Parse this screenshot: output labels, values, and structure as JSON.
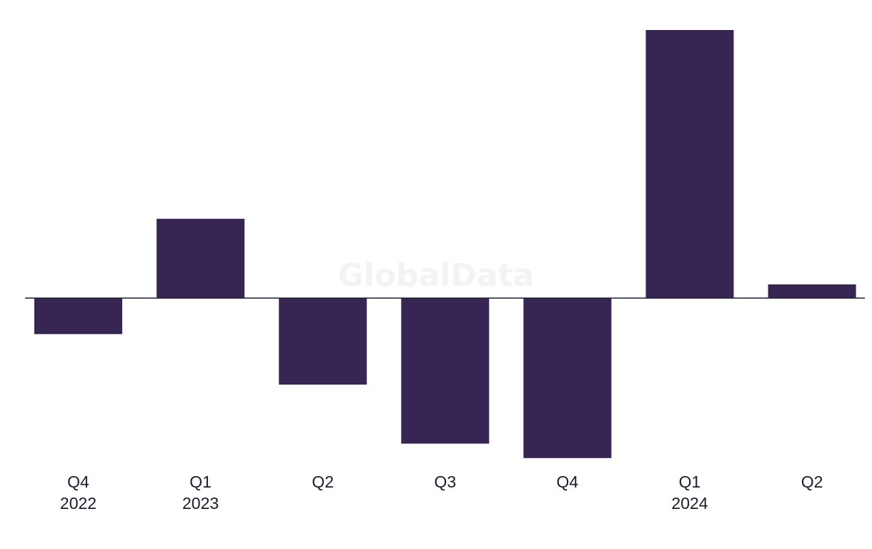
{
  "watermark": "GlobalData",
  "colors": {
    "bar": "#372554",
    "axis": "#1e1a2e",
    "text": "#1e1a2e",
    "watermark": "#f3f3f5"
  },
  "chart_data": {
    "type": "bar",
    "categories": [
      {
        "label": "Q4",
        "year": "2022"
      },
      {
        "label": "Q1",
        "year": "2023"
      },
      {
        "label": "Q2",
        "year": ""
      },
      {
        "label": "Q3",
        "year": ""
      },
      {
        "label": "Q4",
        "year": ""
      },
      {
        "label": "Q1",
        "year": "2024"
      },
      {
        "label": "Q2",
        "year": ""
      }
    ],
    "values": [
      -5,
      11,
      -12,
      -20.2,
      -22.2,
      37.2,
      1.9
    ],
    "ylim": [
      -22.2,
      37.2
    ],
    "grid": false,
    "title": "",
    "xlabel": "",
    "ylabel": ""
  }
}
